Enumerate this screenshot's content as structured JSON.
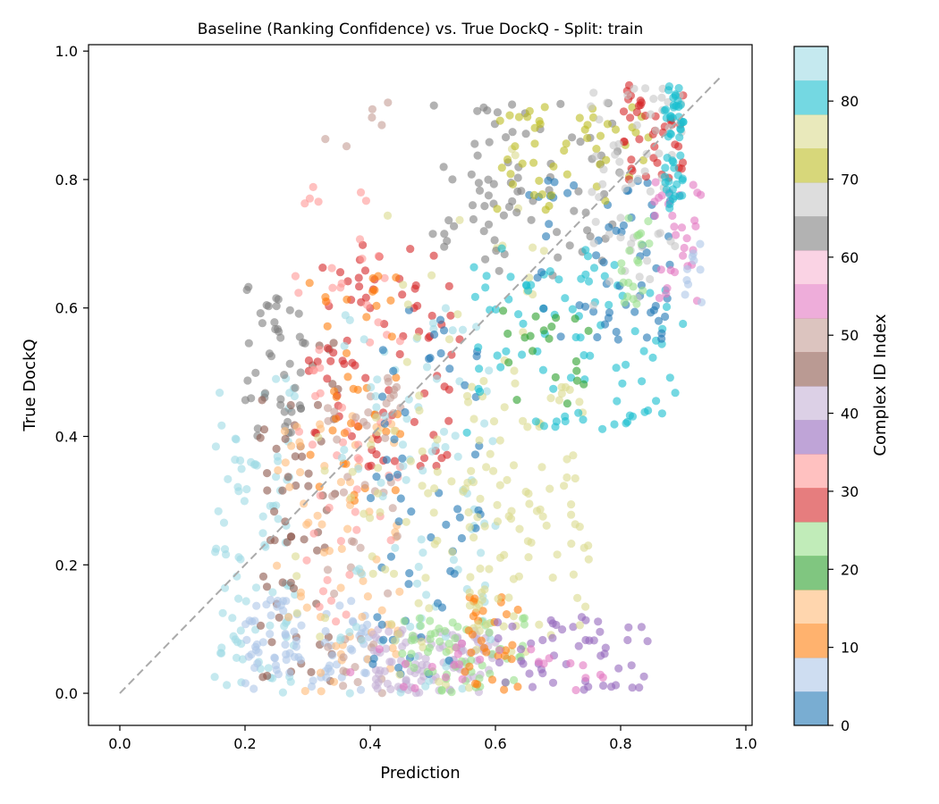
{
  "chart_data": {
    "type": "scatter",
    "title": "Baseline (Ranking Confidence) vs. True DockQ - Split: train",
    "xlabel": "Prediction",
    "ylabel": "True DockQ",
    "xlim": [
      -0.05,
      1.01
    ],
    "ylim": [
      -0.05,
      1.01
    ],
    "xticks": [
      "0.0",
      "0.2",
      "0.4",
      "0.6",
      "0.8",
      "1.0"
    ],
    "yticks": [
      "0.0",
      "0.2",
      "0.4",
      "0.6",
      "0.8",
      "1.0"
    ],
    "grid": false,
    "reference_line": {
      "x": [
        0.0,
        0.96
      ],
      "y": [
        0.0,
        0.96
      ],
      "style": "dashed",
      "color": "#aaaaaa"
    },
    "colorbar": {
      "label": "Complex ID Index",
      "range": [
        0,
        87
      ],
      "ticks": [
        "0",
        "10",
        "20",
        "30",
        "40",
        "50",
        "60",
        "70",
        "80"
      ],
      "colormap": "tab20",
      "colors": [
        "#1f77b4",
        "#aec7e8",
        "#ff7f0e",
        "#ffbb78",
        "#2ca02c",
        "#98df8a",
        "#d62728",
        "#ff9896",
        "#9467bd",
        "#c5b0d5",
        "#8c564b",
        "#c49c94",
        "#e377c2",
        "#f7b6d2",
        "#7f7f7f",
        "#c7c7c7",
        "#bcbd22",
        "#dbdb8d",
        "#17becf",
        "#9edae5"
      ],
      "alpha": 0.6
    },
    "clusters": [
      {
        "id": 86,
        "x": [
          0.15,
          0.28
        ],
        "y": [
          0.0,
          0.5
        ],
        "n": 90
      },
      {
        "id": 63,
        "x": [
          0.2,
          0.3
        ],
        "y": [
          0.4,
          0.64
        ],
        "n": 45
      },
      {
        "id": 44,
        "x": [
          0.22,
          0.35
        ],
        "y": [
          0.0,
          0.55
        ],
        "n": 60
      },
      {
        "id": 8,
        "x": [
          0.2,
          0.4
        ],
        "y": [
          0.0,
          0.15
        ],
        "n": 80
      },
      {
        "id": 14,
        "x": [
          0.25,
          0.45
        ],
        "y": [
          0.0,
          0.45
        ],
        "n": 70
      },
      {
        "id": 28,
        "x": [
          0.3,
          0.55
        ],
        "y": [
          0.35,
          0.7
        ],
        "n": 80
      },
      {
        "id": 34,
        "x": [
          0.28,
          0.45
        ],
        "y": [
          0.1,
          0.8
        ],
        "n": 60
      },
      {
        "id": 10,
        "x": [
          0.3,
          0.45
        ],
        "y": [
          0.3,
          0.65
        ],
        "n": 40
      },
      {
        "id": 48,
        "x": [
          0.33,
          0.45
        ],
        "y": [
          0.0,
          0.5
        ],
        "n": 50
      },
      {
        "id": 50,
        "x": [
          0.27,
          0.5
        ],
        "y": [
          0.85,
          0.92
        ],
        "n": 6
      },
      {
        "id": 42,
        "x": [
          0.4,
          0.6
        ],
        "y": [
          0.0,
          0.1
        ],
        "n": 100
      },
      {
        "id": 84,
        "x": [
          0.35,
          0.6
        ],
        "y": [
          0.0,
          0.6
        ],
        "n": 90
      },
      {
        "id": 2,
        "x": [
          0.4,
          0.58
        ],
        "y": [
          0.0,
          0.6
        ],
        "n": 60
      },
      {
        "id": 74,
        "x": [
          0.28,
          0.7
        ],
        "y": [
          0.0,
          0.4
        ],
        "n": 70
      },
      {
        "id": 22,
        "x": [
          0.45,
          0.65
        ],
        "y": [
          0.0,
          0.12
        ],
        "n": 60
      },
      {
        "id": 78,
        "x": [
          0.4,
          0.7
        ],
        "y": [
          0.3,
          0.85
        ],
        "n": 40
      },
      {
        "id": 12,
        "x": [
          0.55,
          0.65
        ],
        "y": [
          0.0,
          0.15
        ],
        "n": 30
      },
      {
        "id": 36,
        "x": [
          0.6,
          0.85
        ],
        "y": [
          0.0,
          0.12
        ],
        "n": 50
      },
      {
        "id": 56,
        "x": [
          0.35,
          0.8
        ],
        "y": [
          0.0,
          0.08
        ],
        "n": 25
      },
      {
        "id": 76,
        "x": [
          0.55,
          0.75
        ],
        "y": [
          0.1,
          0.5
        ],
        "n": 70
      },
      {
        "id": 62,
        "x": [
          0.5,
          0.8
        ],
        "y": [
          0.65,
          0.92
        ],
        "n": 80
      },
      {
        "id": 80,
        "x": [
          0.55,
          0.9
        ],
        "y": [
          0.4,
          0.7
        ],
        "n": 90
      },
      {
        "id": 0,
        "x": [
          0.65,
          0.88
        ],
        "y": [
          0.55,
          0.8
        ],
        "n": 60
      },
      {
        "id": 70,
        "x": [
          0.6,
          0.85
        ],
        "y": [
          0.75,
          0.92
        ],
        "n": 50
      },
      {
        "id": 30,
        "x": [
          0.8,
          0.9
        ],
        "y": [
          0.8,
          0.95
        ],
        "n": 40
      },
      {
        "id": 66,
        "x": [
          0.75,
          0.9
        ],
        "y": [
          0.6,
          0.95
        ],
        "n": 60
      },
      {
        "id": 54,
        "x": [
          0.85,
          0.93
        ],
        "y": [
          0.6,
          0.8
        ],
        "n": 30
      },
      {
        "id": 82,
        "x": [
          0.87,
          0.9
        ],
        "y": [
          0.75,
          0.95
        ],
        "n": 50
      },
      {
        "id": 26,
        "x": [
          0.8,
          0.85
        ],
        "y": [
          0.6,
          0.75
        ],
        "n": 20
      },
      {
        "id": 6,
        "x": [
          0.9,
          0.93
        ],
        "y": [
          0.6,
          0.7
        ],
        "n": 10
      },
      {
        "id": 18,
        "x": [
          0.6,
          0.75
        ],
        "y": [
          0.45,
          0.6
        ],
        "n": 20
      }
    ]
  }
}
